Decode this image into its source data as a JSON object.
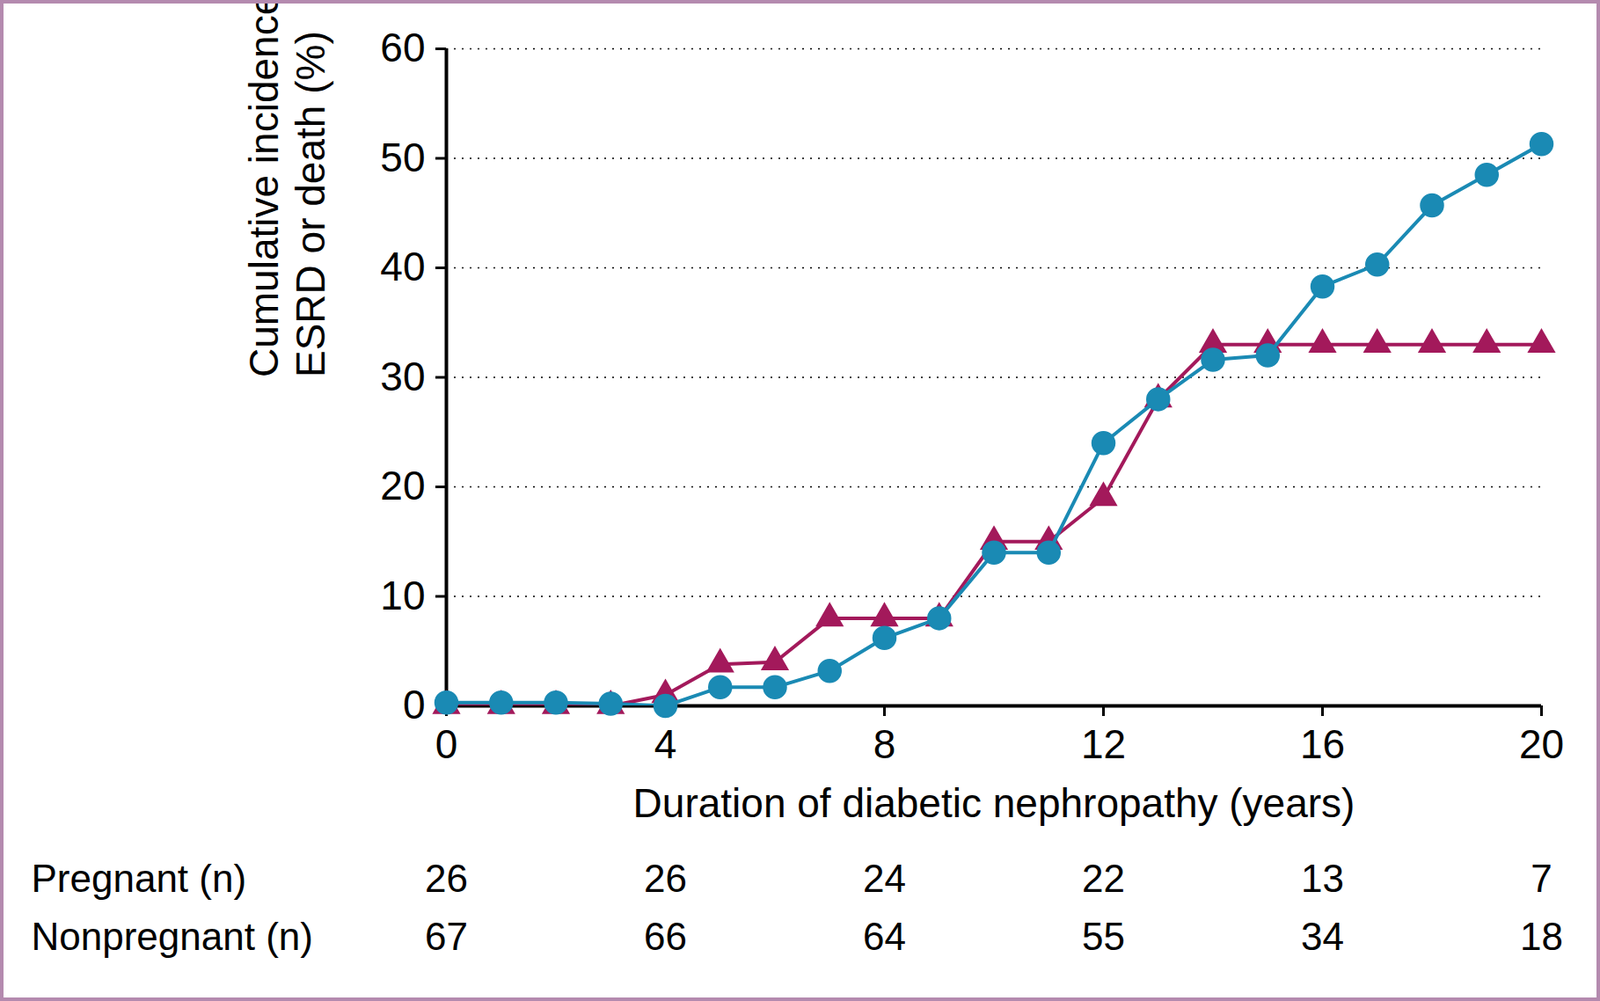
{
  "chart_data": {
    "type": "line",
    "xlabel": "Duration of diabetic nephropathy (years)",
    "ylabel": "Cumulative incidence of\nESRD or death (%)",
    "x": [
      0,
      1,
      2,
      3,
      4,
      5,
      6,
      7,
      8,
      9,
      10,
      11,
      12,
      13,
      14,
      15,
      16,
      17,
      18,
      19,
      20
    ],
    "series": [
      {
        "color": "#a3195b",
        "marker": "triangle",
        "values": [
          0,
          0,
          0,
          0,
          1,
          3.8,
          4,
          8,
          8,
          8,
          15,
          15,
          19,
          28,
          33,
          33,
          33,
          33,
          33,
          33,
          33
        ]
      },
      {
        "color": "#1a8ab4",
        "marker": "circle",
        "values": [
          0.3,
          0.3,
          0.3,
          0.2,
          0,
          1.7,
          1.7,
          3.2,
          6.2,
          8,
          14,
          14,
          24,
          28,
          31.6,
          32,
          38.3,
          40.3,
          45.7,
          48.5,
          51.3
        ]
      }
    ],
    "xlim": [
      0,
      20
    ],
    "xticks": [
      0,
      4,
      8,
      12,
      16,
      20
    ],
    "ylim": [
      0,
      60
    ],
    "yticks": [
      0,
      10,
      20,
      30,
      40,
      50,
      60
    ],
    "grid": true,
    "risk_table": {
      "x": [
        0,
        4,
        8,
        12,
        16,
        20
      ],
      "rows": [
        {
          "label": "Pregnant (n)",
          "values": [
            26,
            26,
            24,
            22,
            13,
            7
          ]
        },
        {
          "label": "Nonpregnant (n)",
          "values": [
            67,
            66,
            64,
            55,
            34,
            18
          ]
        }
      ]
    }
  }
}
